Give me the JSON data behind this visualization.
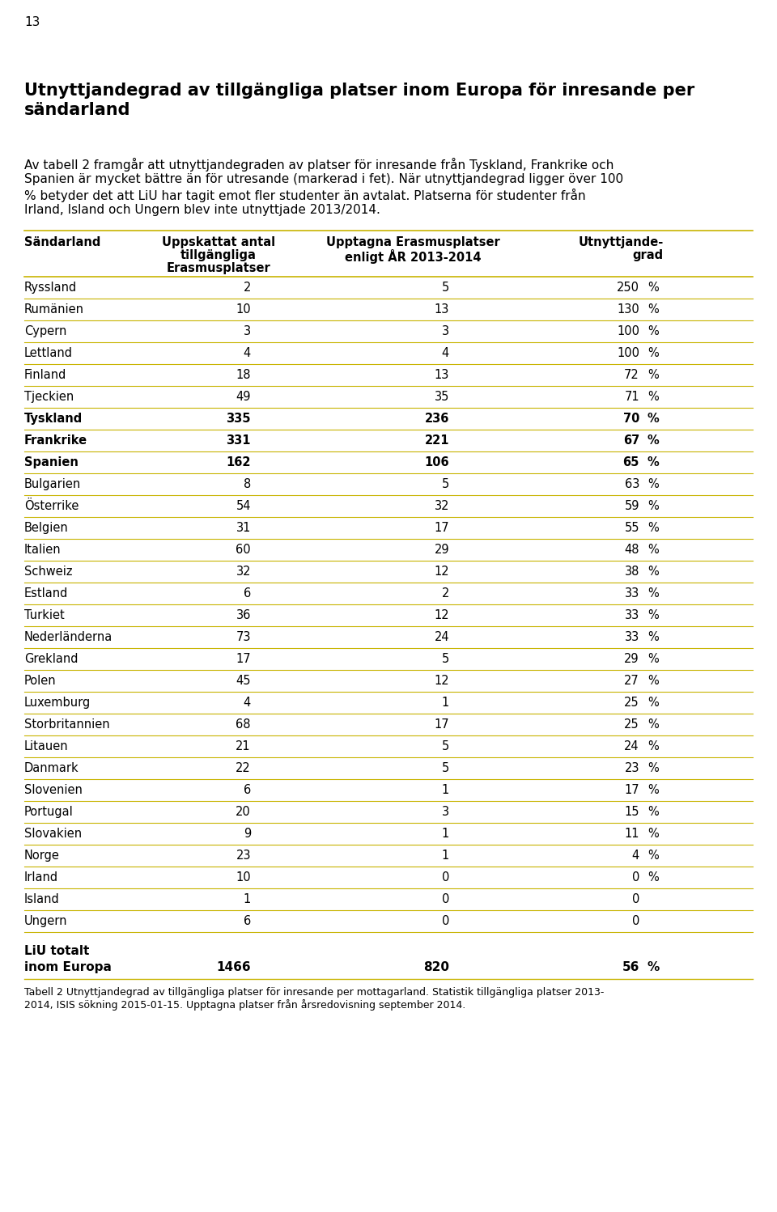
{
  "page_number": "13",
  "heading_line1": "Utnyttjandegrad av tillgängliga platser inom Europa för inresande per",
  "heading_line2": "sändarland",
  "body_text_line1": "Av tabell 2 framgår att utnyttjandegraden av platser för inresande från Tyskland, Frankrike och",
  "body_text_line2": "Spanien är mycket bättre än för utresande (markerad i fet). När utnyttjandegrad ligger över 100",
  "body_text_line3": "% betyder det att LiU har tagit emot fler studenter än avtalat. Platserna för studenter från",
  "body_text_line4": "Irland, Island och Ungern blev inte utnyttjade 2013/2014.",
  "col_header1": "Sändarland",
  "col_header2a": "Uppskattat antal",
  "col_header2b": "tillgängliga",
  "col_header2c": "Erasmusplatser",
  "col_header3a": "Upptagna Erasmusplatser",
  "col_header3b": "enligt ÅR 2013-2014",
  "col_header4a": "Utnyttjande-",
  "col_header4b": "grad",
  "rows": [
    {
      "country": "Ryssland",
      "available": "2",
      "taken": "5",
      "pct": "250",
      "pct_sign": "%",
      "bold": false
    },
    {
      "country": "Rumänien",
      "available": "10",
      "taken": "13",
      "pct": "130",
      "pct_sign": "%",
      "bold": false
    },
    {
      "country": "Cypern",
      "available": "3",
      "taken": "3",
      "pct": "100",
      "pct_sign": "%",
      "bold": false
    },
    {
      "country": "Lettland",
      "available": "4",
      "taken": "4",
      "pct": "100",
      "pct_sign": "%",
      "bold": false
    },
    {
      "country": "Finland",
      "available": "18",
      "taken": "13",
      "pct": "72",
      "pct_sign": "%",
      "bold": false
    },
    {
      "country": "Tjeckien",
      "available": "49",
      "taken": "35",
      "pct": "71",
      "pct_sign": "%",
      "bold": false
    },
    {
      "country": "Tyskland",
      "available": "335",
      "taken": "236",
      "pct": "70",
      "pct_sign": "%",
      "bold": true
    },
    {
      "country": "Frankrike",
      "available": "331",
      "taken": "221",
      "pct": "67",
      "pct_sign": "%",
      "bold": true
    },
    {
      "country": "Spanien",
      "available": "162",
      "taken": "106",
      "pct": "65",
      "pct_sign": "%",
      "bold": true
    },
    {
      "country": "Bulgarien",
      "available": "8",
      "taken": "5",
      "pct": "63",
      "pct_sign": "%",
      "bold": false
    },
    {
      "country": "Österrike",
      "available": "54",
      "taken": "32",
      "pct": "59",
      "pct_sign": "%",
      "bold": false
    },
    {
      "country": "Belgien",
      "available": "31",
      "taken": "17",
      "pct": "55",
      "pct_sign": "%",
      "bold": false
    },
    {
      "country": "Italien",
      "available": "60",
      "taken": "29",
      "pct": "48",
      "pct_sign": "%",
      "bold": false
    },
    {
      "country": "Schweiz",
      "available": "32",
      "taken": "12",
      "pct": "38",
      "pct_sign": "%",
      "bold": false
    },
    {
      "country": "Estland",
      "available": "6",
      "taken": "2",
      "pct": "33",
      "pct_sign": "%",
      "bold": false
    },
    {
      "country": "Turkiet",
      "available": "36",
      "taken": "12",
      "pct": "33",
      "pct_sign": "%",
      "bold": false
    },
    {
      "country": "Nederländerna",
      "available": "73",
      "taken": "24",
      "pct": "33",
      "pct_sign": "%",
      "bold": false
    },
    {
      "country": "Grekland",
      "available": "17",
      "taken": "5",
      "pct": "29",
      "pct_sign": "%",
      "bold": false
    },
    {
      "country": "Polen",
      "available": "45",
      "taken": "12",
      "pct": "27",
      "pct_sign": "%",
      "bold": false
    },
    {
      "country": "Luxemburg",
      "available": "4",
      "taken": "1",
      "pct": "25",
      "pct_sign": "%",
      "bold": false
    },
    {
      "country": "Storbritannien",
      "available": "68",
      "taken": "17",
      "pct": "25",
      "pct_sign": "%",
      "bold": false
    },
    {
      "country": "Litauen",
      "available": "21",
      "taken": "5",
      "pct": "24",
      "pct_sign": "%",
      "bold": false
    },
    {
      "country": "Danmark",
      "available": "22",
      "taken": "5",
      "pct": "23",
      "pct_sign": "%",
      "bold": false
    },
    {
      "country": "Slovenien",
      "available": "6",
      "taken": "1",
      "pct": "17",
      "pct_sign": "%",
      "bold": false
    },
    {
      "country": "Portugal",
      "available": "20",
      "taken": "3",
      "pct": "15",
      "pct_sign": "%",
      "bold": false
    },
    {
      "country": "Slovakien",
      "available": "9",
      "taken": "1",
      "pct": "11",
      "pct_sign": "%",
      "bold": false
    },
    {
      "country": "Norge",
      "available": "23",
      "taken": "1",
      "pct": "4",
      "pct_sign": "%",
      "bold": false
    },
    {
      "country": "Irland",
      "available": "10",
      "taken": "0",
      "pct": "0",
      "pct_sign": "%",
      "bold": false
    },
    {
      "country": "Island",
      "available": "1",
      "taken": "0",
      "pct": "0",
      "pct_sign": "",
      "bold": false
    },
    {
      "country": "Ungern",
      "available": "6",
      "taken": "0",
      "pct": "0",
      "pct_sign": "",
      "bold": false
    }
  ],
  "total_label1": "LiU totalt",
  "total_label2": "inom Europa",
  "total_available": "1466",
  "total_taken": "820",
  "total_pct": "56",
  "total_pct_sign": "%",
  "caption_line1": "Tabell 2 Utnyttjandegrad av tillgängliga platser för inresande per mottagarland. Statistik tillgängliga platser 2013-",
  "caption_line2": "2014, ISIS sökning 2015-01-15. Upptagna platser från årsredovisning september 2014.",
  "line_color": "#c8b400",
  "bg_color": "#ffffff",
  "text_color": "#000000"
}
